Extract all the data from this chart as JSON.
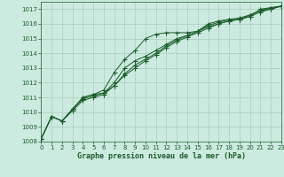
{
  "bg_color": "#cceae0",
  "grid_color": "#aaccbb",
  "line_color": "#1a5c2a",
  "title": "Graphe pression niveau de la mer (hPa)",
  "xlim": [
    0,
    23
  ],
  "ylim": [
    1008,
    1017.5
  ],
  "xticks": [
    0,
    1,
    2,
    3,
    4,
    5,
    6,
    7,
    8,
    9,
    10,
    11,
    12,
    13,
    14,
    15,
    16,
    17,
    18,
    19,
    20,
    21,
    22,
    23
  ],
  "yticks": [
    1008,
    1009,
    1010,
    1011,
    1012,
    1013,
    1014,
    1015,
    1016,
    1017
  ],
  "line1": [
    1008.2,
    1009.7,
    1009.4,
    1010.2,
    1011.0,
    1011.2,
    1011.5,
    1012.7,
    1013.6,
    1014.2,
    1015.0,
    1015.3,
    1015.4,
    1015.4,
    1015.4,
    1015.5,
    1016.0,
    1016.2,
    1016.3,
    1016.3,
    1016.5,
    1017.0,
    1017.1,
    1017.2
  ],
  "line2": [
    1008.2,
    1009.7,
    1009.4,
    1010.2,
    1011.0,
    1011.2,
    1011.3,
    1012.0,
    1013.0,
    1013.5,
    1013.8,
    1014.2,
    1014.6,
    1015.0,
    1015.2,
    1015.5,
    1015.9,
    1016.1,
    1016.3,
    1016.4,
    1016.6,
    1016.9,
    1017.1,
    1017.2
  ],
  "line3": [
    1008.2,
    1009.7,
    1009.4,
    1010.2,
    1010.9,
    1011.1,
    1011.3,
    1011.8,
    1012.6,
    1013.2,
    1013.6,
    1014.0,
    1014.5,
    1014.9,
    1015.2,
    1015.5,
    1015.8,
    1016.0,
    1016.2,
    1016.3,
    1016.6,
    1016.9,
    1017.0,
    1017.2
  ],
  "line4": [
    1008.2,
    1009.7,
    1009.4,
    1010.1,
    1010.8,
    1011.0,
    1011.2,
    1011.8,
    1012.5,
    1013.0,
    1013.5,
    1013.9,
    1014.4,
    1014.8,
    1015.1,
    1015.4,
    1015.7,
    1016.0,
    1016.2,
    1016.3,
    1016.5,
    1016.8,
    1017.0,
    1017.2
  ],
  "tick_fontsize": 5.0,
  "title_fontsize": 6.0,
  "marker_size": 2.0,
  "line_width": 0.7
}
